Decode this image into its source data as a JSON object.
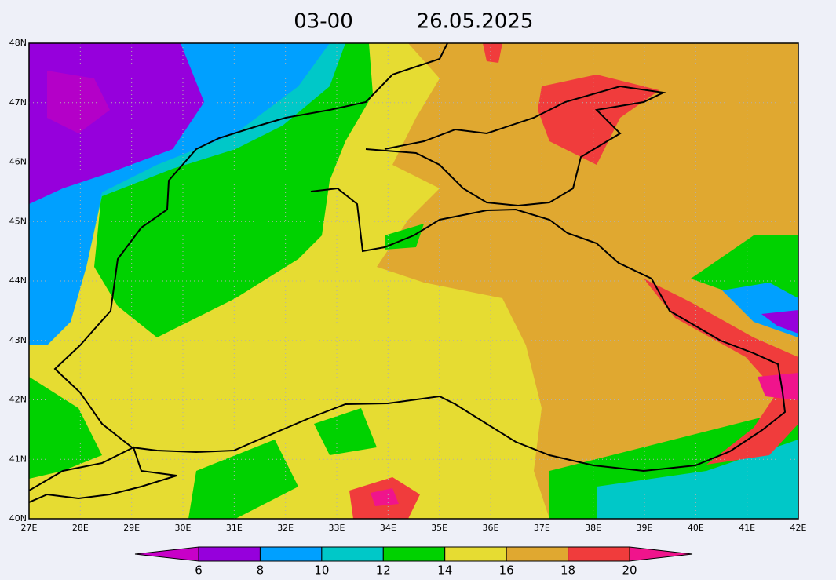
{
  "title": {
    "time": "03-00",
    "date": "26.05.2025"
  },
  "lat_labels": [
    "48N",
    "47N",
    "46N",
    "45N",
    "44N",
    "43N",
    "42N",
    "41N",
    "40N"
  ],
  "lon_labels": [
    "27E",
    "28E",
    "29E",
    "30E",
    "31E",
    "32E",
    "33E",
    "34E",
    "35E",
    "36E",
    "37E",
    "38E",
    "39E",
    "40E",
    "41E",
    "42E"
  ],
  "colorbar": {
    "levels": [
      6,
      8,
      10,
      12,
      14,
      16,
      18,
      20
    ],
    "colors": [
      "#c800c8",
      "#9600dc",
      "#00a0ff",
      "#00c8c8",
      "#00d200",
      "#e6dc32",
      "#e0a830",
      "#f03c3c",
      "#f0148c"
    ]
  }
}
